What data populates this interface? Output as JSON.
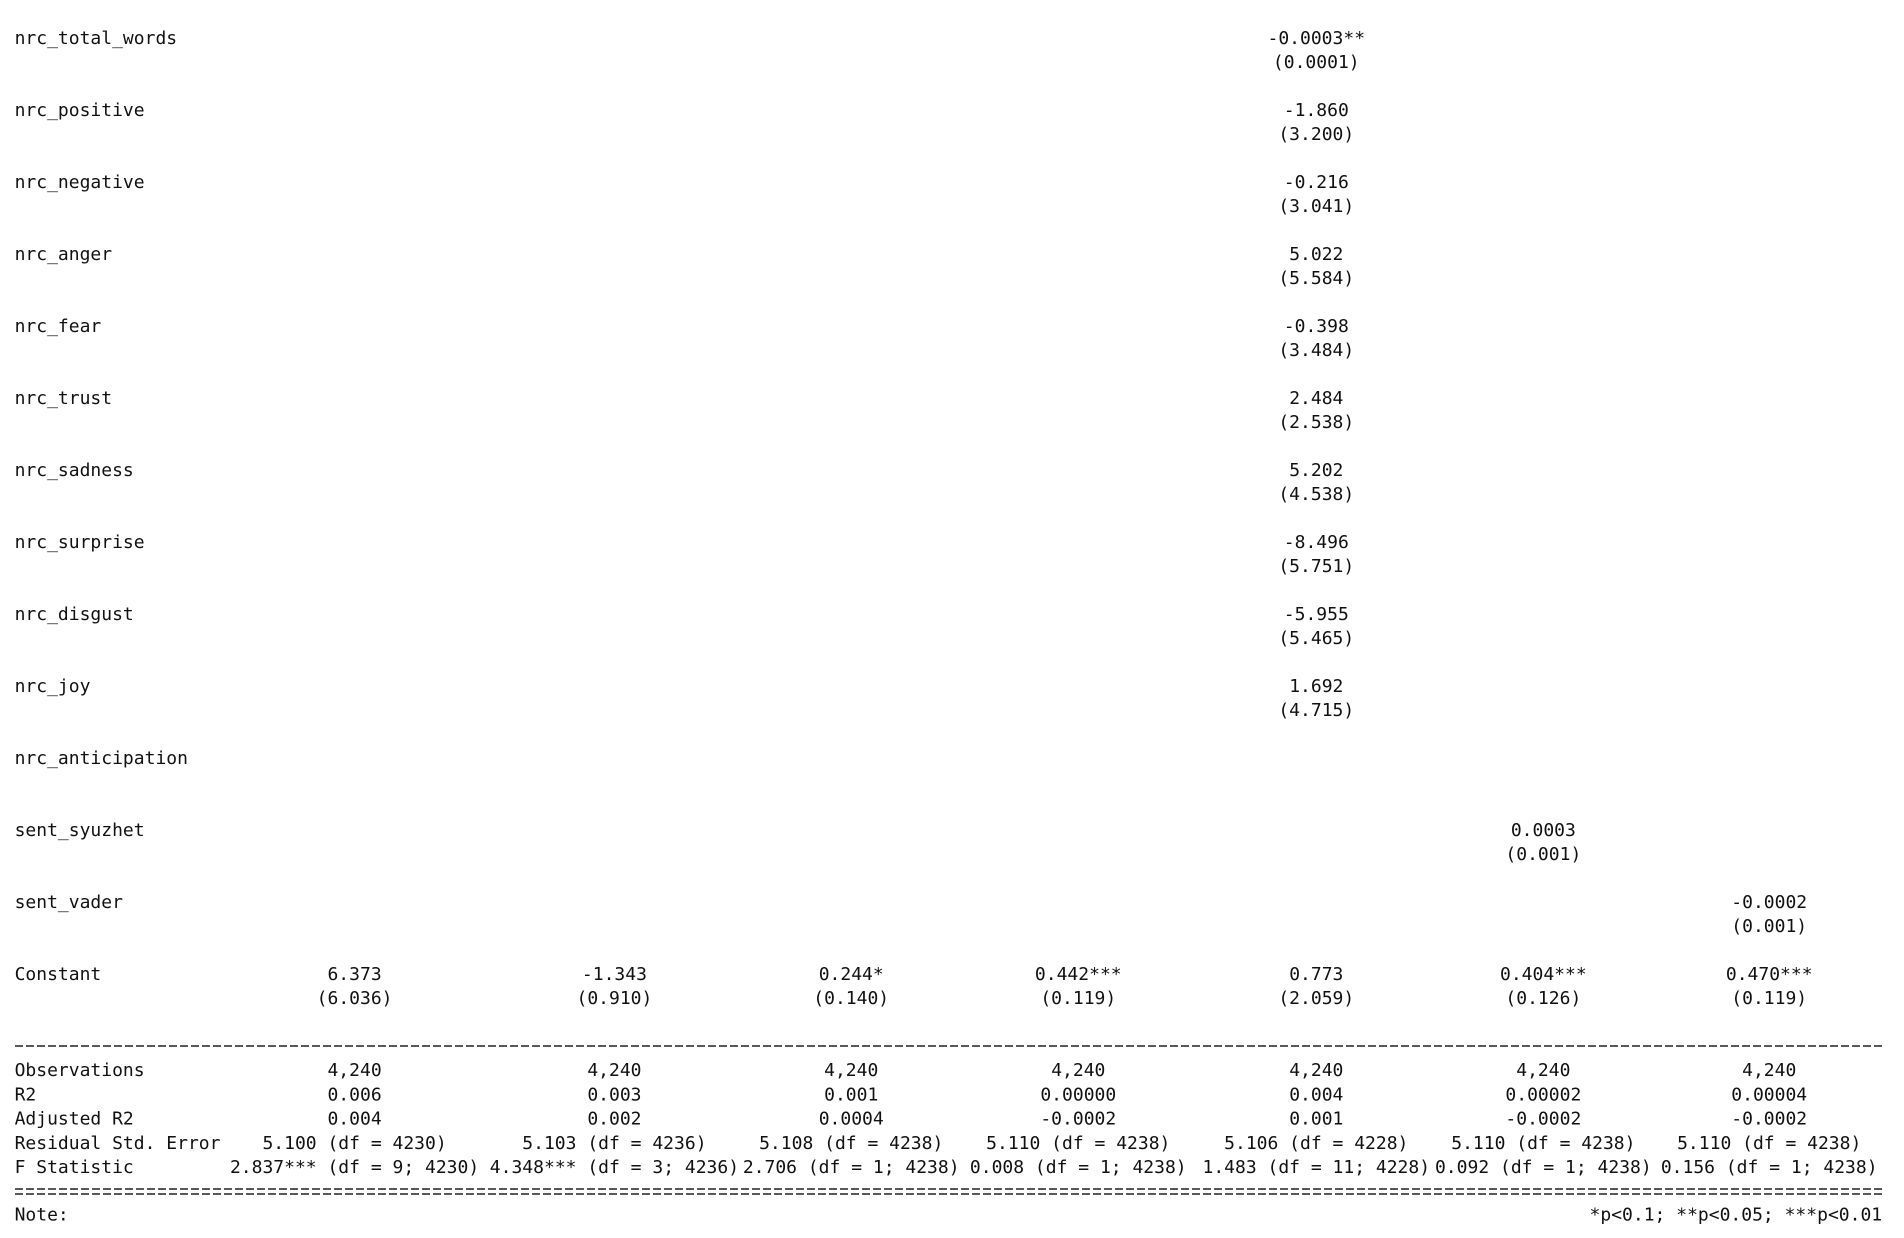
{
  "coefficients": [
    {
      "label": "nrc_total_words",
      "values": [
        null,
        null,
        null,
        null,
        "-0.0003**",
        null,
        null
      ],
      "se": [
        null,
        null,
        null,
        null,
        "(0.0001)",
        null,
        null
      ]
    },
    {
      "label": "nrc_positive",
      "values": [
        null,
        null,
        null,
        null,
        "-1.860",
        null,
        null
      ],
      "se": [
        null,
        null,
        null,
        null,
        "(3.200)",
        null,
        null
      ]
    },
    {
      "label": "nrc_negative",
      "values": [
        null,
        null,
        null,
        null,
        "-0.216",
        null,
        null
      ],
      "se": [
        null,
        null,
        null,
        null,
        "(3.041)",
        null,
        null
      ]
    },
    {
      "label": "nrc_anger",
      "values": [
        null,
        null,
        null,
        null,
        "5.022",
        null,
        null
      ],
      "se": [
        null,
        null,
        null,
        null,
        "(5.584)",
        null,
        null
      ]
    },
    {
      "label": "nrc_fear",
      "values": [
        null,
        null,
        null,
        null,
        "-0.398",
        null,
        null
      ],
      "se": [
        null,
        null,
        null,
        null,
        "(3.484)",
        null,
        null
      ]
    },
    {
      "label": "nrc_trust",
      "values": [
        null,
        null,
        null,
        null,
        "2.484",
        null,
        null
      ],
      "se": [
        null,
        null,
        null,
        null,
        "(2.538)",
        null,
        null
      ]
    },
    {
      "label": "nrc_sadness",
      "values": [
        null,
        null,
        null,
        null,
        "5.202",
        null,
        null
      ],
      "se": [
        null,
        null,
        null,
        null,
        "(4.538)",
        null,
        null
      ]
    },
    {
      "label": "nrc_surprise",
      "values": [
        null,
        null,
        null,
        null,
        "-8.496",
        null,
        null
      ],
      "se": [
        null,
        null,
        null,
        null,
        "(5.751)",
        null,
        null
      ]
    },
    {
      "label": "nrc_disgust",
      "values": [
        null,
        null,
        null,
        null,
        "-5.955",
        null,
        null
      ],
      "se": [
        null,
        null,
        null,
        null,
        "(5.465)",
        null,
        null
      ]
    },
    {
      "label": "nrc_joy",
      "values": [
        null,
        null,
        null,
        null,
        "1.692",
        null,
        null
      ],
      "se": [
        null,
        null,
        null,
        null,
        "(4.715)",
        null,
        null
      ]
    },
    {
      "label": "nrc_anticipation",
      "values": [
        null,
        null,
        null,
        null,
        null,
        null,
        null
      ],
      "se": [
        null,
        null,
        null,
        null,
        null,
        null,
        null
      ]
    },
    {
      "label": "sent_syuzhet",
      "values": [
        null,
        null,
        null,
        null,
        null,
        "0.0003",
        null
      ],
      "se": [
        null,
        null,
        null,
        null,
        null,
        "(0.001)",
        null
      ]
    },
    {
      "label": "sent_vader",
      "values": [
        null,
        null,
        null,
        null,
        null,
        null,
        "-0.0002"
      ],
      "se": [
        null,
        null,
        null,
        null,
        null,
        null,
        "(0.001)"
      ]
    },
    {
      "label": "Constant",
      "values": [
        "6.373",
        "-1.343",
        "0.244*",
        "0.442***",
        "0.773",
        "0.404***",
        "0.470***"
      ],
      "se": [
        "(6.036)",
        "(0.910)",
        "(0.140)",
        "(0.119)",
        "(2.059)",
        "(0.126)",
        "(0.119)"
      ]
    }
  ],
  "stats": [
    {
      "label": "Observations",
      "values": [
        "4,240",
        "4,240",
        "4,240",
        "4,240",
        "4,240",
        "4,240",
        "4,240"
      ]
    },
    {
      "label": "R2",
      "values": [
        "0.006",
        "0.003",
        "0.001",
        "0.00000",
        "0.004",
        "0.00002",
        "0.00004"
      ]
    },
    {
      "label": "Adjusted R2",
      "values": [
        "0.004",
        "0.002",
        "0.0004",
        "-0.0002",
        "0.001",
        "-0.0002",
        "-0.0002"
      ]
    },
    {
      "label": "Residual Std. Error",
      "values": [
        "5.100 (df = 4230)",
        "5.103 (df = 4236)",
        "5.108 (df = 4238)",
        "5.110 (df = 4238)",
        "5.106 (df = 4228)",
        "5.110 (df = 4238)",
        "5.110 (df = 4238)"
      ]
    },
    {
      "label": "F Statistic",
      "values": [
        "2.837*** (df = 9; 4230)",
        "4.348*** (df = 3; 4236)",
        "2.706 (df = 1; 4238)",
        "0.008 (df = 1; 4238)",
        "1.483 (df = 11; 4228)",
        "0.092 (df = 1; 4238)",
        "0.156 (df = 1; 4238)"
      ]
    }
  ],
  "note": {
    "label": "Note:",
    "text": "*p<0.1; **p<0.05; ***p<0.01"
  }
}
